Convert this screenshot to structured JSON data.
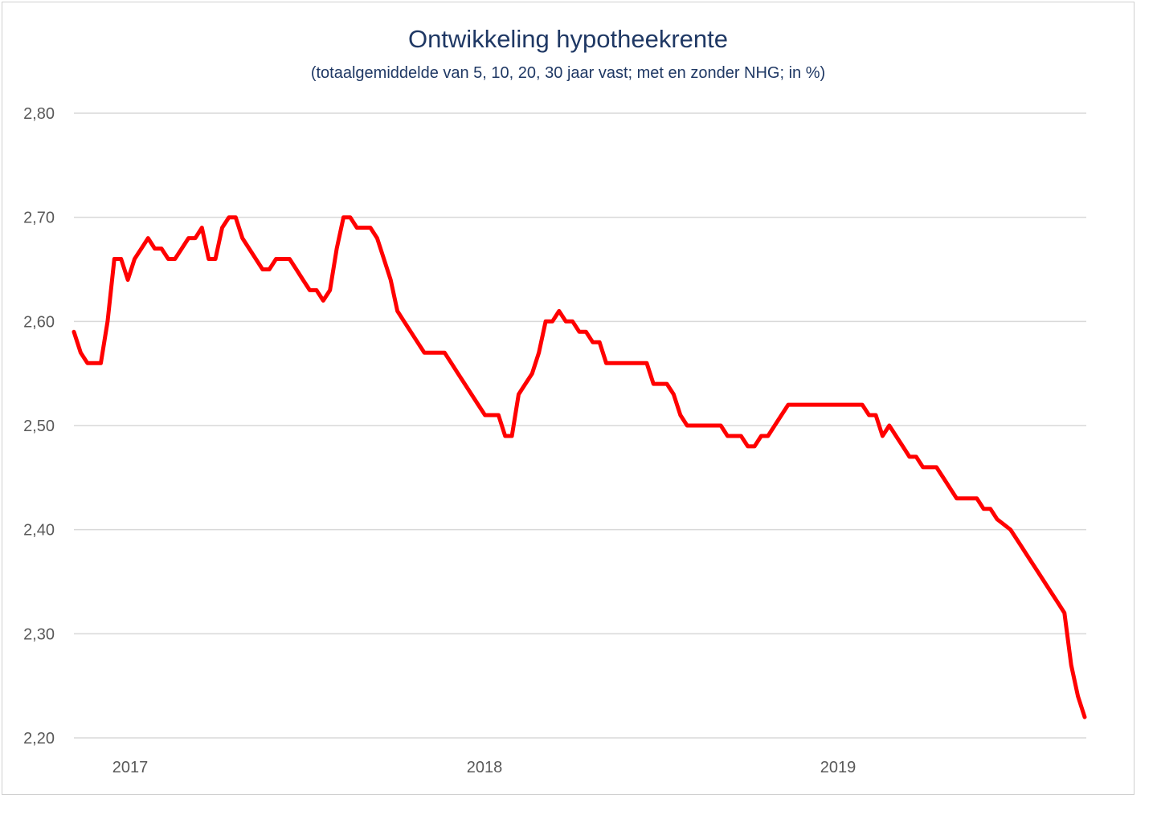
{
  "chart_data": {
    "type": "line",
    "title": "Ontwikkeling hypotheekrente",
    "subtitle": "(totaalgemiddelde van 5, 10, 20, 30 jaar vast; met en zonder NHG; in %)",
    "xlabel": "",
    "ylabel": "",
    "ylim": [
      2.2,
      2.8
    ],
    "yticks": [
      "2,20",
      "2,30",
      "2,40",
      "2,50",
      "2,60",
      "2,70",
      "2,80"
    ],
    "xticks": [
      "2017",
      "2018",
      "2019"
    ],
    "grid": true,
    "line_color": "#ff0000",
    "series": [
      {
        "name": "",
        "values": [
          2.59,
          2.57,
          2.56,
          2.56,
          2.56,
          2.6,
          2.66,
          2.66,
          2.64,
          2.66,
          2.67,
          2.68,
          2.67,
          2.67,
          2.66,
          2.66,
          2.67,
          2.68,
          2.68,
          2.69,
          2.66,
          2.66,
          2.69,
          2.7,
          2.7,
          2.68,
          2.67,
          2.66,
          2.65,
          2.65,
          2.66,
          2.66,
          2.66,
          2.65,
          2.64,
          2.63,
          2.63,
          2.62,
          2.63,
          2.67,
          2.7,
          2.7,
          2.69,
          2.69,
          2.69,
          2.68,
          2.66,
          2.64,
          2.61,
          2.6,
          2.59,
          2.58,
          2.57,
          2.57,
          2.57,
          2.57,
          2.56,
          2.55,
          2.54,
          2.53,
          2.52,
          2.51,
          2.51,
          2.51,
          2.49,
          2.49,
          2.53,
          2.54,
          2.55,
          2.57,
          2.6,
          2.6,
          2.61,
          2.6,
          2.6,
          2.59,
          2.59,
          2.58,
          2.58,
          2.56,
          2.56,
          2.56,
          2.56,
          2.56,
          2.56,
          2.56,
          2.54,
          2.54,
          2.54,
          2.53,
          2.51,
          2.5,
          2.5,
          2.5,
          2.5,
          2.5,
          2.5,
          2.49,
          2.49,
          2.49,
          2.48,
          2.48,
          2.49,
          2.49,
          2.5,
          2.51,
          2.52,
          2.52,
          2.52,
          2.52,
          2.52,
          2.52,
          2.52,
          2.52,
          2.52,
          2.52,
          2.52,
          2.52,
          2.51,
          2.51,
          2.49,
          2.5,
          2.49,
          2.48,
          2.47,
          2.47,
          2.46,
          2.46,
          2.46,
          2.45,
          2.44,
          2.43,
          2.43,
          2.43,
          2.43,
          2.42,
          2.42,
          2.41,
          2.405,
          2.4,
          2.39,
          2.38,
          2.37,
          2.36,
          2.35,
          2.34,
          2.33,
          2.32,
          2.27,
          2.24,
          2.22
        ]
      }
    ]
  }
}
